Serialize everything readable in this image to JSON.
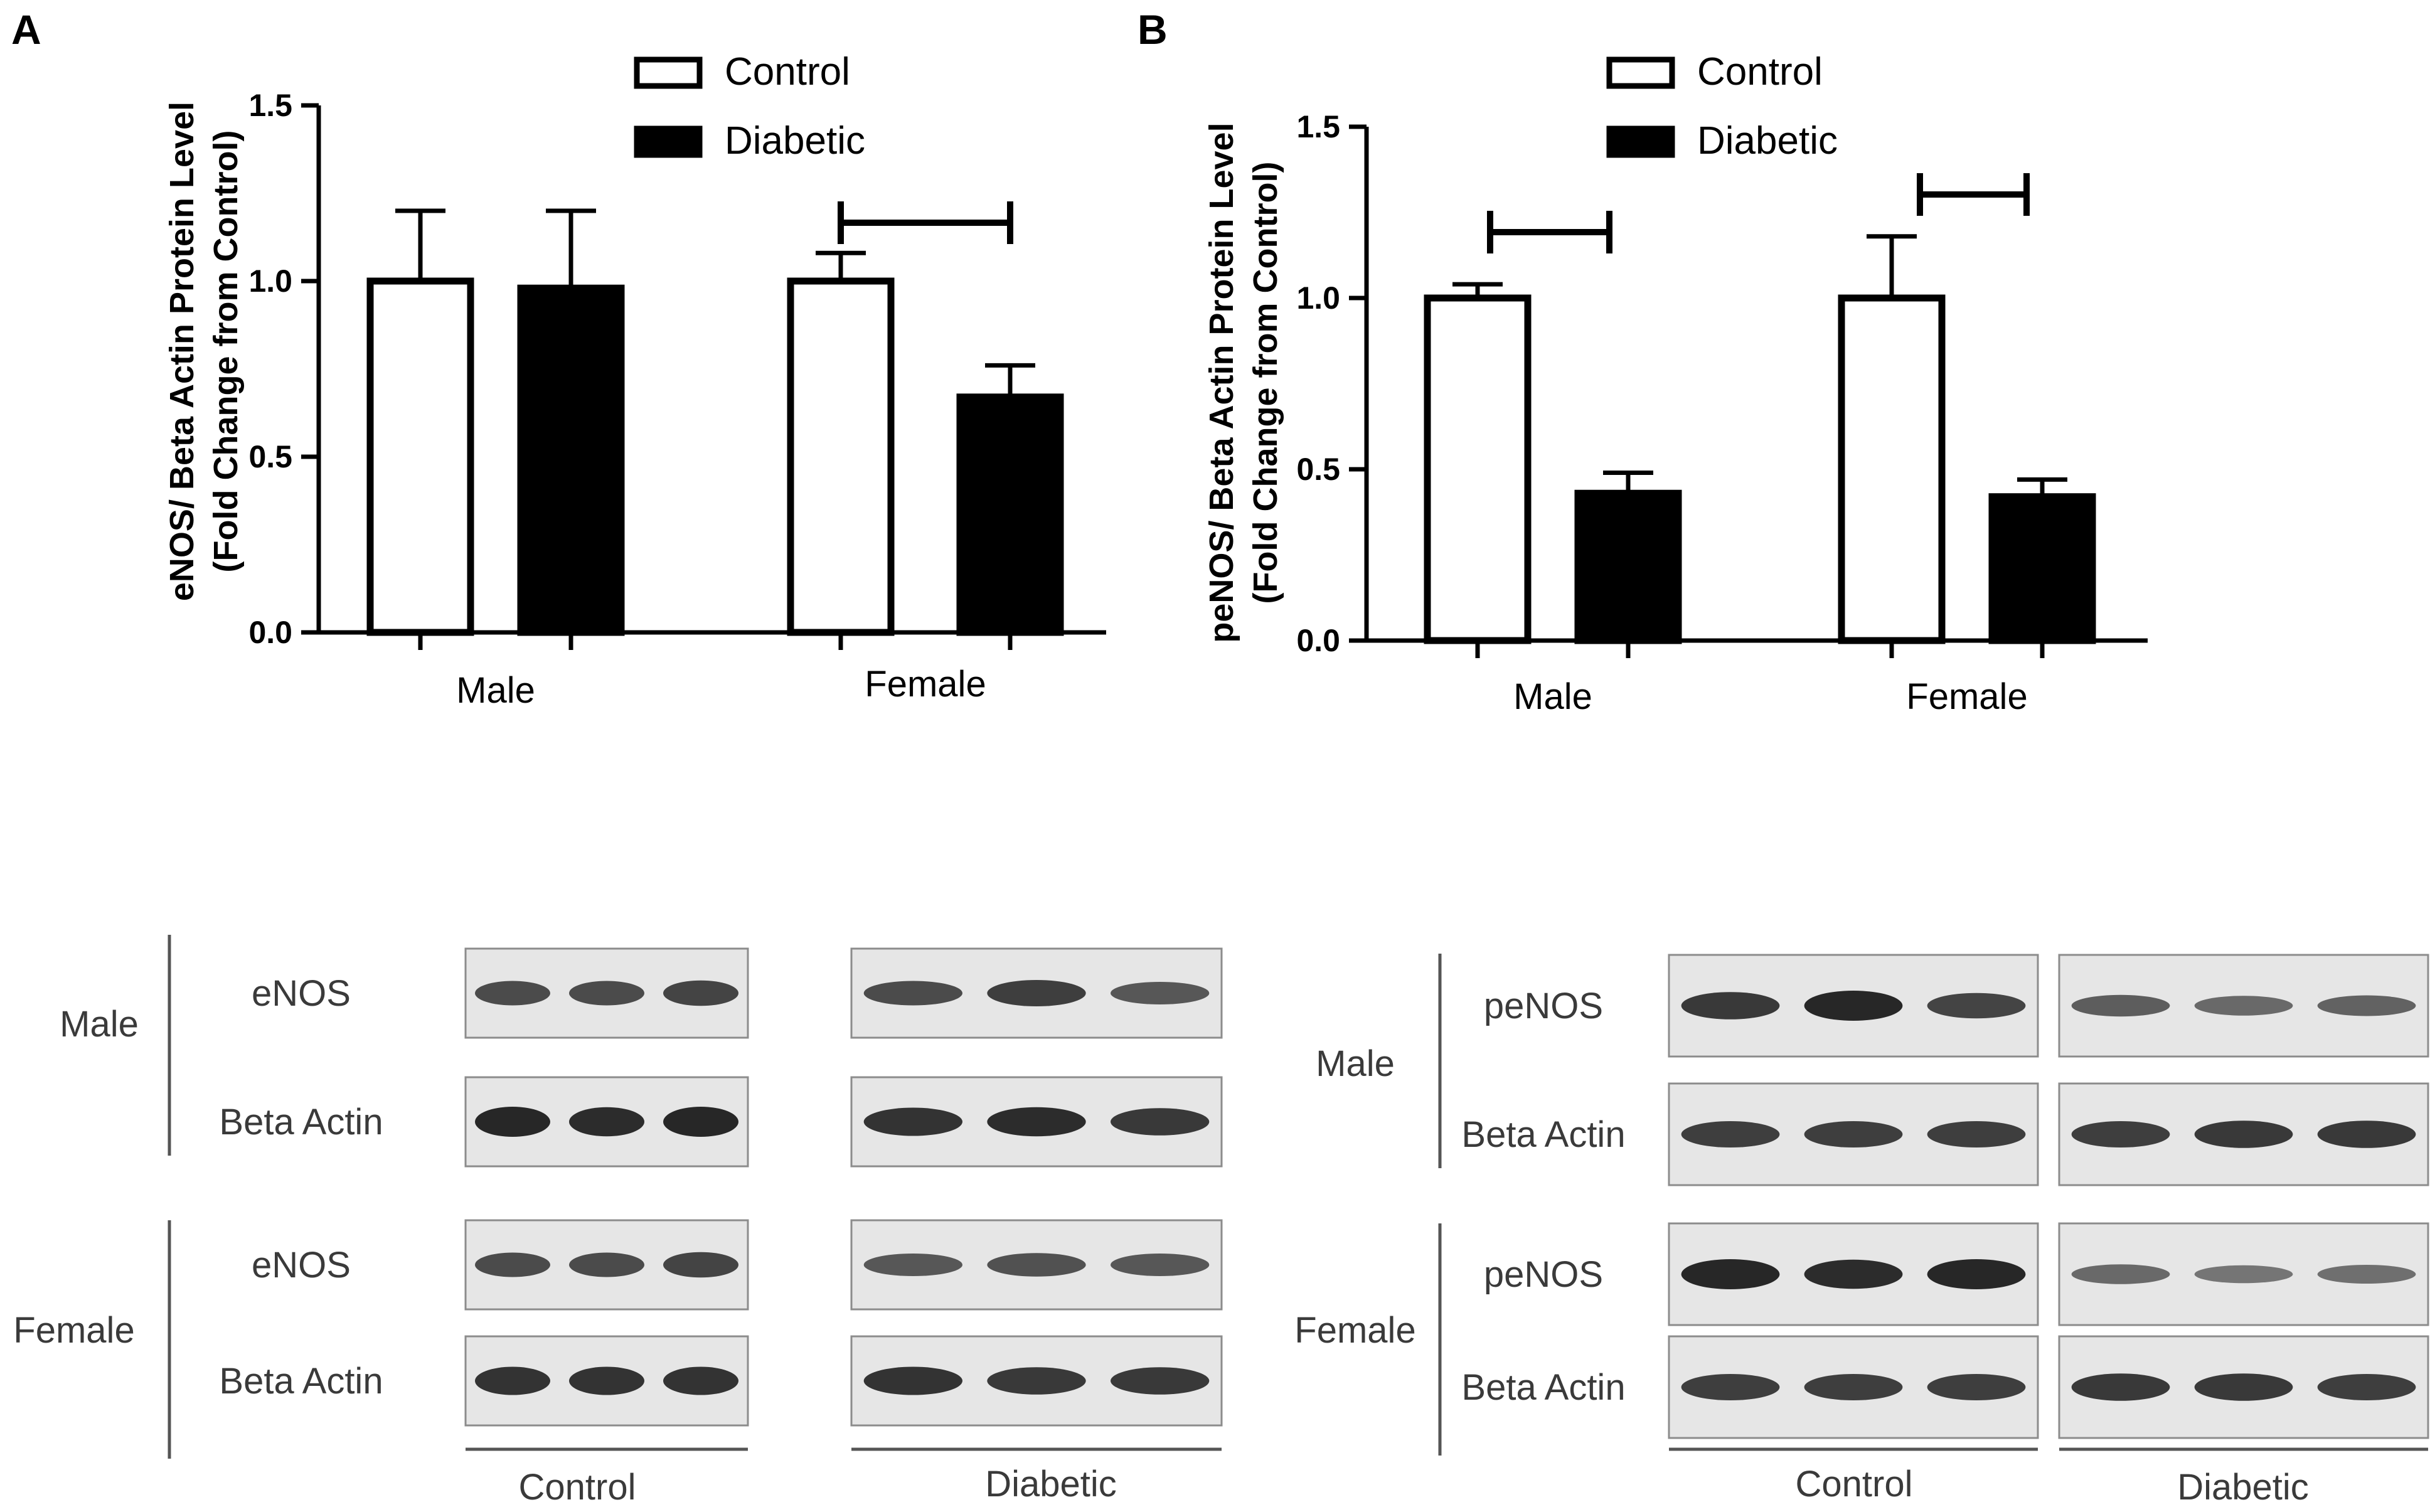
{
  "colors": {
    "control_fill": "#ffffff",
    "diabetic_fill": "#000000",
    "axis": "#000000",
    "blot_bg": "#e6e6e6",
    "band": "#1c1c1c",
    "blot_text": "#3a3a3a"
  },
  "chart_data": [
    {
      "panel": "A",
      "type": "bar",
      "categories": [
        "Male",
        "Female"
      ],
      "series": [
        {
          "name": "Control",
          "values": [
            1.0,
            1.0
          ],
          "errors": [
            0.2,
            0.08
          ]
        },
        {
          "name": "Diabetic",
          "values": [
            0.98,
            0.67
          ],
          "errors": [
            0.22,
            0.09
          ]
        }
      ],
      "ylabel_line1": "eNOS/ Beta Actin Protein Level",
      "ylabel_line2": "(Fold Change from Control)",
      "xlabel": "",
      "ylim": [
        0,
        1.5
      ],
      "yticks": [
        "0.0",
        "0.5",
        "1.0",
        "1.5"
      ],
      "significance": [
        {
          "category": "Female"
        }
      ],
      "legend": "top-center"
    },
    {
      "panel": "B",
      "type": "bar",
      "categories": [
        "Male",
        "Female"
      ],
      "series": [
        {
          "name": "Control",
          "values": [
            1.0,
            1.0
          ],
          "errors": [
            0.04,
            0.18
          ]
        },
        {
          "name": "Diabetic",
          "values": [
            0.43,
            0.42
          ],
          "errors": [
            0.06,
            0.05
          ]
        }
      ],
      "ylabel_line1": "peNOS/ Beta Actin Protein Level",
      "ylabel_line2": "(Fold Change from Control)",
      "xlabel": "",
      "ylim": [
        0,
        1.5
      ],
      "yticks": [
        "0.0",
        "0.5",
        "1.0",
        "1.5"
      ],
      "significance": [
        {
          "category": "Male"
        },
        {
          "category": "Female"
        }
      ],
      "legend": "top-center"
    }
  ],
  "blots": [
    {
      "panel": "A",
      "groups": [
        {
          "sex": "Male",
          "rows": [
            {
              "label": "eNOS",
              "control_bands": [
                0.7,
                0.7,
                0.75
              ],
              "diabetic_bands": [
                0.7,
                0.8,
                0.6
              ]
            },
            {
              "label": "Beta Actin",
              "control_bands": [
                1.0,
                0.95,
                1.0
              ],
              "diabetic_bands": [
                0.9,
                0.95,
                0.85
              ]
            }
          ]
        },
        {
          "sex": "Female",
          "rows": [
            {
              "label": "eNOS",
              "control_bands": [
                0.7,
                0.7,
                0.75
              ],
              "diabetic_bands": [
                0.6,
                0.65,
                0.6
              ]
            },
            {
              "label": "Beta Actin",
              "control_bands": [
                0.9,
                0.9,
                0.9
              ],
              "diabetic_bands": [
                0.9,
                0.85,
                0.85
              ]
            }
          ]
        }
      ],
      "footer": {
        "control": "Control",
        "diabetic": "Diabetic"
      }
    },
    {
      "panel": "B",
      "groups": [
        {
          "sex": "Male",
          "rows": [
            {
              "label": "peNOS",
              "control_bands": [
                0.85,
                1.0,
                0.75
              ],
              "diabetic_bands": [
                0.55,
                0.45,
                0.5
              ]
            },
            {
              "label": "Beta Actin",
              "control_bands": [
                0.8,
                0.8,
                0.8
              ],
              "diabetic_bands": [
                0.8,
                0.85,
                0.85
              ]
            }
          ]
        },
        {
          "sex": "Female",
          "rows": [
            {
              "label": "peNOS",
              "control_bands": [
                1.0,
                0.95,
                1.0
              ],
              "diabetic_bands": [
                0.45,
                0.35,
                0.4
              ]
            },
            {
              "label": "Beta Actin",
              "control_bands": [
                0.8,
                0.8,
                0.8
              ],
              "diabetic_bands": [
                0.85,
                0.85,
                0.8
              ]
            }
          ]
        }
      ],
      "footer": {
        "control": "Control",
        "diabetic": "Diabetic"
      }
    }
  ]
}
